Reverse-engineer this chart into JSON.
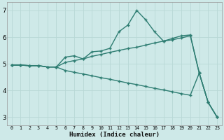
{
  "xlabel": "Humidex (Indice chaleur)",
  "background_color": "#cee9e8",
  "grid_color": "#b8d8d6",
  "line_color": "#2e7d72",
  "x_values": [
    0,
    1,
    2,
    3,
    4,
    5,
    6,
    7,
    8,
    9,
    10,
    11,
    12,
    13,
    14,
    15,
    16,
    17,
    18,
    19,
    20,
    21,
    22,
    23
  ],
  "line1": [
    4.95,
    4.95,
    4.93,
    4.93,
    4.88,
    4.88,
    5.25,
    5.3,
    5.18,
    5.45,
    5.48,
    5.58,
    6.2,
    6.45,
    7.0,
    6.65,
    6.2,
    5.85,
    5.95,
    6.05,
    6.08,
    4.65,
    3.55,
    3.0
  ],
  "line2": [
    4.95,
    4.95,
    4.93,
    4.93,
    4.88,
    4.88,
    5.05,
    5.12,
    5.18,
    5.28,
    5.35,
    5.43,
    5.5,
    5.57,
    5.62,
    5.7,
    5.78,
    5.85,
    5.9,
    5.97,
    6.05,
    4.65,
    3.55,
    3.0
  ],
  "line3": [
    4.95,
    4.95,
    4.93,
    4.93,
    4.88,
    4.88,
    4.75,
    4.68,
    4.62,
    4.55,
    4.48,
    4.42,
    4.35,
    4.28,
    4.22,
    4.15,
    4.08,
    4.02,
    3.95,
    3.88,
    3.82,
    4.65,
    3.55,
    3.0
  ],
  "ylim": [
    2.7,
    7.3
  ],
  "xlim": [
    -0.5,
    23.5
  ],
  "yticks": [
    3,
    4,
    5,
    6,
    7
  ],
  "xticks": [
    0,
    1,
    2,
    3,
    4,
    5,
    6,
    7,
    8,
    9,
    10,
    11,
    12,
    13,
    14,
    15,
    16,
    17,
    18,
    19,
    20,
    21,
    22,
    23
  ]
}
